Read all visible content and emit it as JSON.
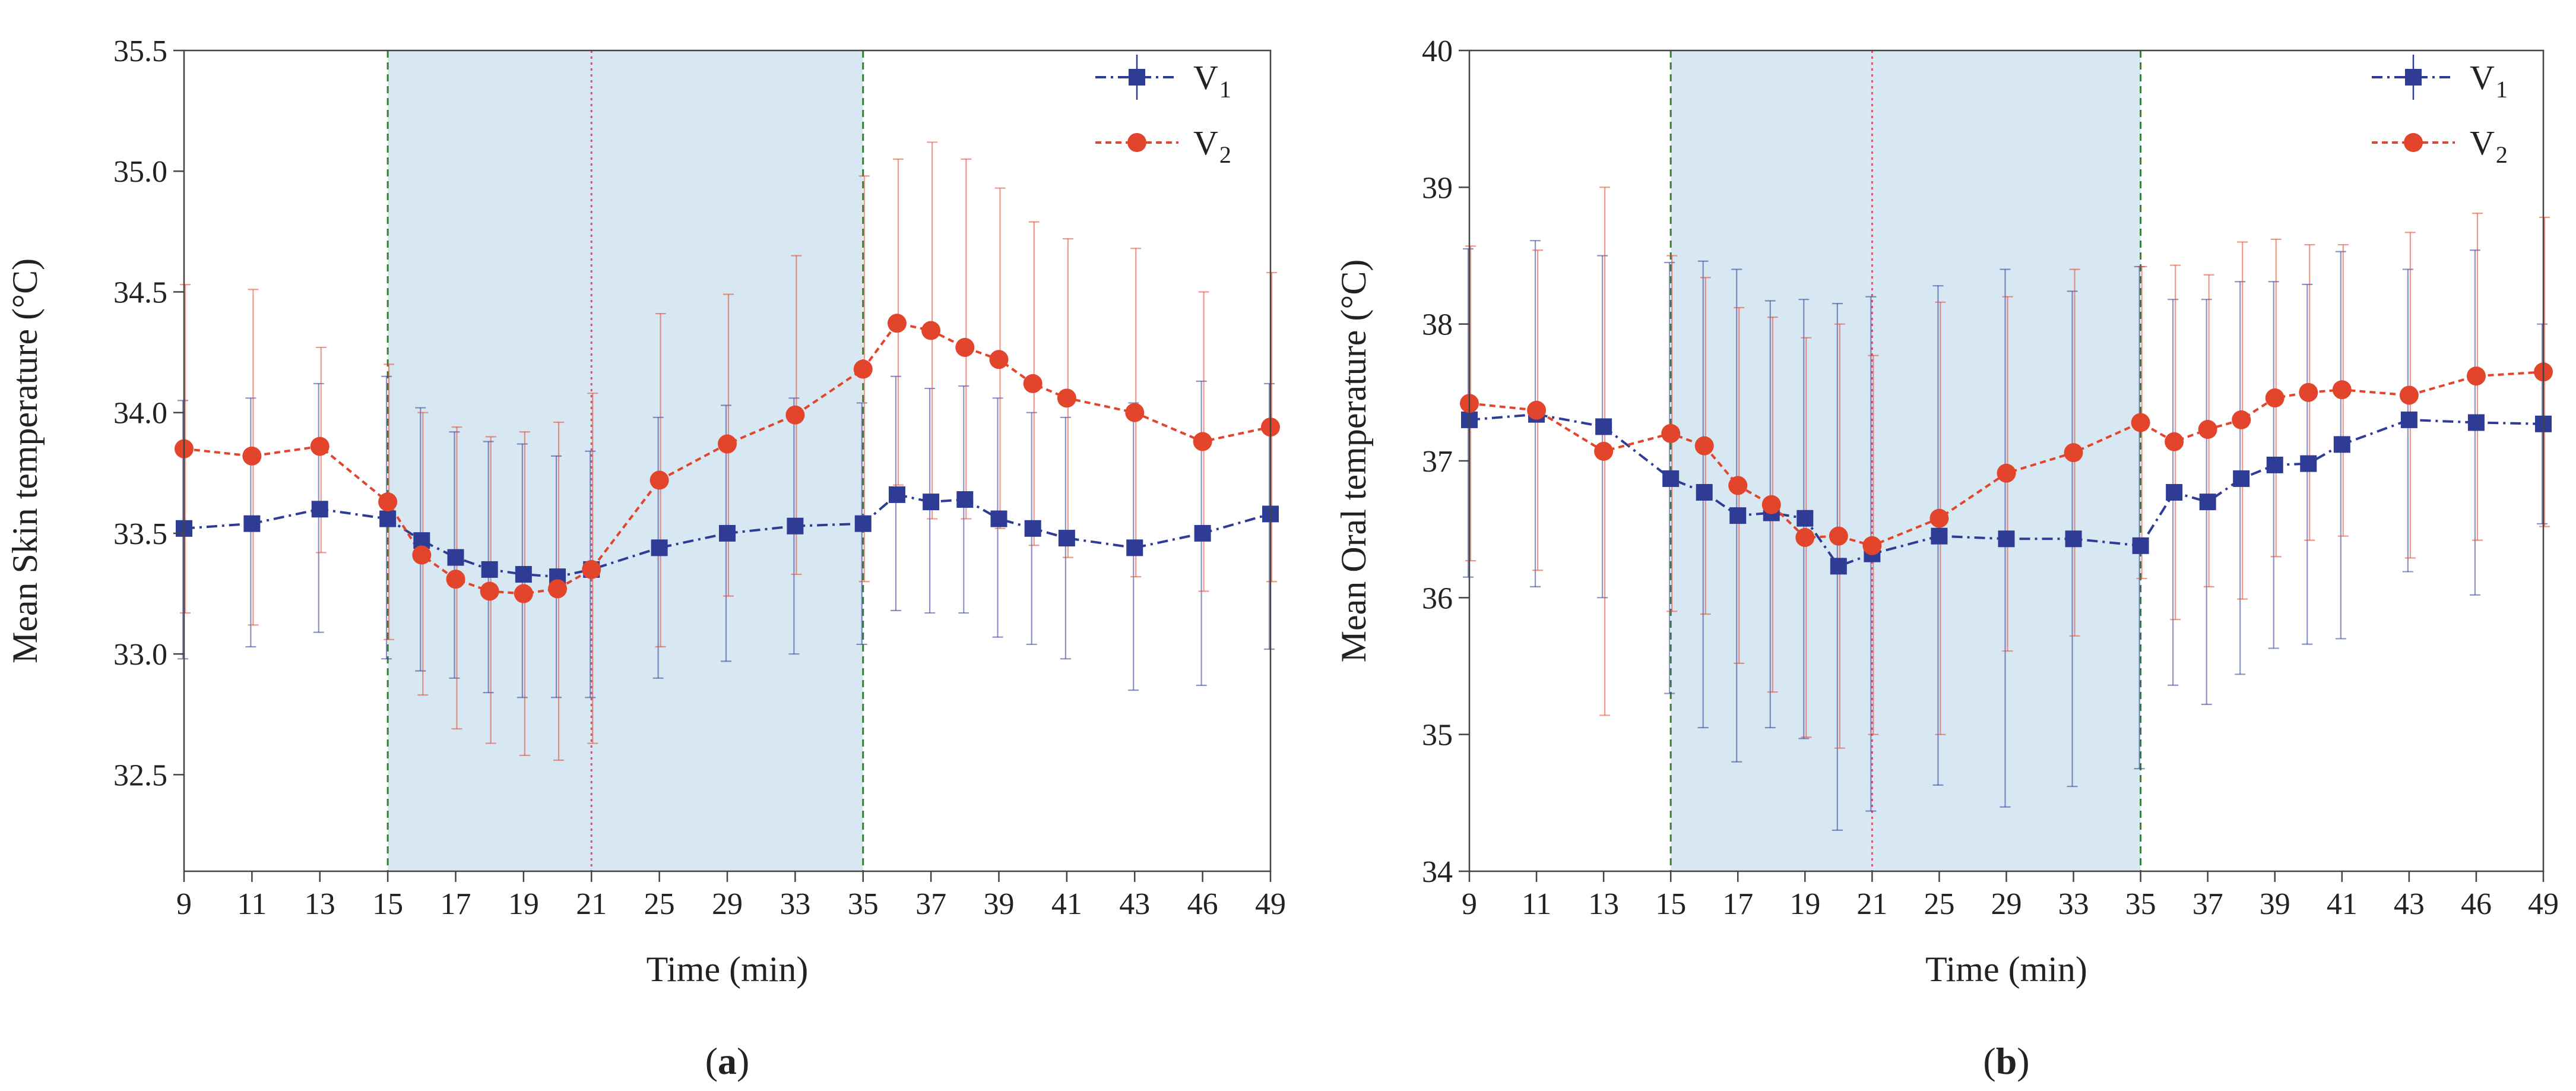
{
  "chart_data": [
    {
      "panel_label": "a",
      "type": "line",
      "xlabel": "Time (min)",
      "ylabel": "Mean Skin temperature (°C)",
      "x_axis_positions": [
        9,
        11,
        13,
        15,
        17,
        19,
        21,
        25,
        29,
        33,
        35,
        37,
        39,
        41,
        43,
        46,
        49
      ],
      "x_tick_labels": [
        "9",
        "11",
        "13",
        "15",
        "17",
        "19",
        "21",
        "25",
        "29",
        "33",
        "35",
        "37",
        "39",
        "41",
        "43",
        "46",
        "49"
      ],
      "ylim": [
        32.1,
        35.5
      ],
      "y_ticks": [
        32.5,
        33.0,
        33.5,
        34.0,
        34.5,
        35.0,
        35.5
      ],
      "y_tick_labels": [
        "32.5",
        "33.0",
        "33.5",
        "34.0",
        "34.5",
        "35.0",
        "35.5"
      ],
      "shaded_region": [
        15,
        35
      ],
      "vertical_lines": [
        {
          "x": 15,
          "style": "dashed",
          "color": "#3a7a3a"
        },
        {
          "x": 21,
          "style": "dotted",
          "color": "#e05070"
        },
        {
          "x": 35,
          "style": "dashed",
          "color": "#3a7a3a"
        }
      ],
      "legend_position": "top-right",
      "series": [
        {
          "name": "V",
          "subscript": "1",
          "color": "#2e3c96",
          "marker": "square",
          "line": "dashdot",
          "x": [
            9,
            11,
            13,
            15,
            16,
            17,
            18,
            19,
            20,
            21,
            25,
            29,
            33,
            35,
            36,
            37,
            38,
            39,
            40,
            41,
            43,
            46,
            49
          ],
          "values": [
            33.52,
            33.54,
            33.6,
            33.56,
            33.47,
            33.4,
            33.35,
            33.33,
            33.32,
            33.35,
            33.44,
            33.5,
            33.53,
            33.54,
            33.66,
            33.63,
            33.64,
            33.56,
            33.52,
            33.48,
            33.44,
            33.5,
            33.58
          ],
          "err_low": [
            32.98,
            33.03,
            33.09,
            32.98,
            32.93,
            32.9,
            32.84,
            32.82,
            32.82,
            32.82,
            32.9,
            32.97,
            33.0,
            33.04,
            33.18,
            33.17,
            33.17,
            33.07,
            33.04,
            32.98,
            32.85,
            32.87,
            33.02
          ],
          "err_high": [
            34.05,
            34.06,
            34.12,
            34.15,
            34.02,
            33.92,
            33.88,
            33.87,
            33.82,
            33.84,
            33.98,
            34.03,
            34.06,
            34.04,
            34.15,
            34.1,
            34.11,
            34.06,
            34.0,
            33.98,
            34.04,
            34.13,
            34.12
          ]
        },
        {
          "name": "V",
          "subscript": "2",
          "color": "#e2452c",
          "marker": "circle",
          "line": "dashed",
          "x": [
            9,
            11,
            13,
            15,
            16,
            17,
            18,
            19,
            20,
            21,
            25,
            29,
            33,
            35,
            36,
            37,
            38,
            39,
            40,
            41,
            43,
            46,
            49
          ],
          "values": [
            33.85,
            33.82,
            33.86,
            33.63,
            33.41,
            33.31,
            33.26,
            33.25,
            33.27,
            33.35,
            33.72,
            33.87,
            33.99,
            34.18,
            34.37,
            34.34,
            34.27,
            34.22,
            34.12,
            34.06,
            34.0,
            33.88,
            33.94
          ],
          "err_low": [
            33.17,
            33.12,
            33.42,
            33.06,
            32.83,
            32.69,
            32.63,
            32.58,
            32.56,
            32.63,
            33.03,
            33.24,
            33.33,
            33.3,
            33.7,
            33.56,
            33.56,
            33.52,
            33.45,
            33.4,
            33.32,
            33.26,
            33.3
          ],
          "err_high": [
            34.53,
            34.51,
            34.27,
            34.2,
            34.0,
            33.94,
            33.9,
            33.92,
            33.96,
            34.08,
            34.41,
            34.49,
            34.65,
            34.98,
            35.05,
            35.12,
            35.05,
            34.93,
            34.79,
            34.72,
            34.68,
            34.5,
            34.58
          ]
        }
      ]
    },
    {
      "panel_label": "b",
      "type": "line",
      "xlabel": "Time (min)",
      "ylabel": "Mean Oral temperature (°C)",
      "x_axis_positions": [
        9,
        11,
        13,
        15,
        17,
        19,
        21,
        25,
        29,
        33,
        35,
        37,
        39,
        41,
        43,
        46,
        49
      ],
      "x_tick_labels": [
        "9",
        "11",
        "13",
        "15",
        "17",
        "19",
        "21",
        "25",
        "29",
        "33",
        "35",
        "37",
        "39",
        "41",
        "43",
        "46",
        "49"
      ],
      "ylim": [
        34,
        40
      ],
      "y_ticks": [
        34,
        35,
        36,
        37,
        38,
        39,
        40
      ],
      "y_tick_labels": [
        "34",
        "35",
        "36",
        "37",
        "38",
        "39",
        "40"
      ],
      "shaded_region": [
        15,
        35
      ],
      "vertical_lines": [
        {
          "x": 15,
          "style": "dashed",
          "color": "#3a7a3a"
        },
        {
          "x": 21,
          "style": "dotted",
          "color": "#e05070"
        },
        {
          "x": 35,
          "style": "dashed",
          "color": "#3a7a3a"
        }
      ],
      "legend_position": "top-right",
      "series": [
        {
          "name": "V",
          "subscript": "1",
          "color": "#2e3c96",
          "marker": "square",
          "line": "dashdot",
          "x": [
            9,
            11,
            13,
            15,
            16,
            17,
            18,
            19,
            20,
            21,
            25,
            29,
            33,
            35,
            36,
            37,
            38,
            39,
            40,
            41,
            43,
            46,
            49
          ],
          "values": [
            37.3,
            37.34,
            37.25,
            36.87,
            36.77,
            36.6,
            36.62,
            36.58,
            36.23,
            36.32,
            36.45,
            36.43,
            36.43,
            36.38,
            36.77,
            36.7,
            36.87,
            36.97,
            36.98,
            37.12,
            37.3,
            37.28,
            37.27
          ],
          "err_low": [
            36.15,
            36.08,
            36.0,
            35.3,
            35.05,
            34.8,
            35.05,
            34.97,
            34.3,
            34.44,
            34.63,
            34.47,
            34.62,
            34.75,
            35.36,
            35.22,
            35.44,
            35.63,
            35.66,
            35.7,
            36.19,
            36.02,
            36.54
          ],
          "err_high": [
            38.55,
            38.61,
            38.5,
            38.45,
            38.46,
            38.4,
            38.17,
            38.18,
            38.15,
            38.2,
            38.28,
            38.4,
            38.24,
            38.42,
            38.18,
            38.18,
            38.31,
            38.31,
            38.29,
            38.53,
            38.4,
            38.54,
            38.0
          ]
        },
        {
          "name": "V",
          "subscript": "2",
          "color": "#e2452c",
          "marker": "circle",
          "line": "dashed",
          "x": [
            9,
            11,
            13,
            15,
            16,
            17,
            18,
            19,
            20,
            21,
            25,
            29,
            33,
            35,
            36,
            37,
            38,
            39,
            40,
            41,
            43,
            46,
            49
          ],
          "values": [
            37.42,
            37.37,
            37.07,
            37.2,
            37.11,
            36.82,
            36.68,
            36.44,
            36.45,
            36.38,
            36.58,
            36.91,
            37.06,
            37.28,
            37.14,
            37.23,
            37.3,
            37.46,
            37.5,
            37.52,
            37.48,
            37.62,
            37.65
          ],
          "err_low": [
            36.27,
            36.2,
            35.14,
            35.9,
            35.88,
            35.52,
            35.31,
            34.98,
            34.9,
            35.0,
            35.0,
            35.61,
            35.72,
            36.14,
            35.84,
            36.08,
            35.99,
            36.3,
            36.42,
            36.45,
            36.29,
            36.42,
            36.52
          ],
          "err_high": [
            38.57,
            38.54,
            39.0,
            38.5,
            38.34,
            38.12,
            38.05,
            37.9,
            38.0,
            37.77,
            38.16,
            38.2,
            38.4,
            38.42,
            38.43,
            38.36,
            38.6,
            38.62,
            38.58,
            38.58,
            38.67,
            38.81,
            38.78
          ]
        }
      ]
    }
  ]
}
